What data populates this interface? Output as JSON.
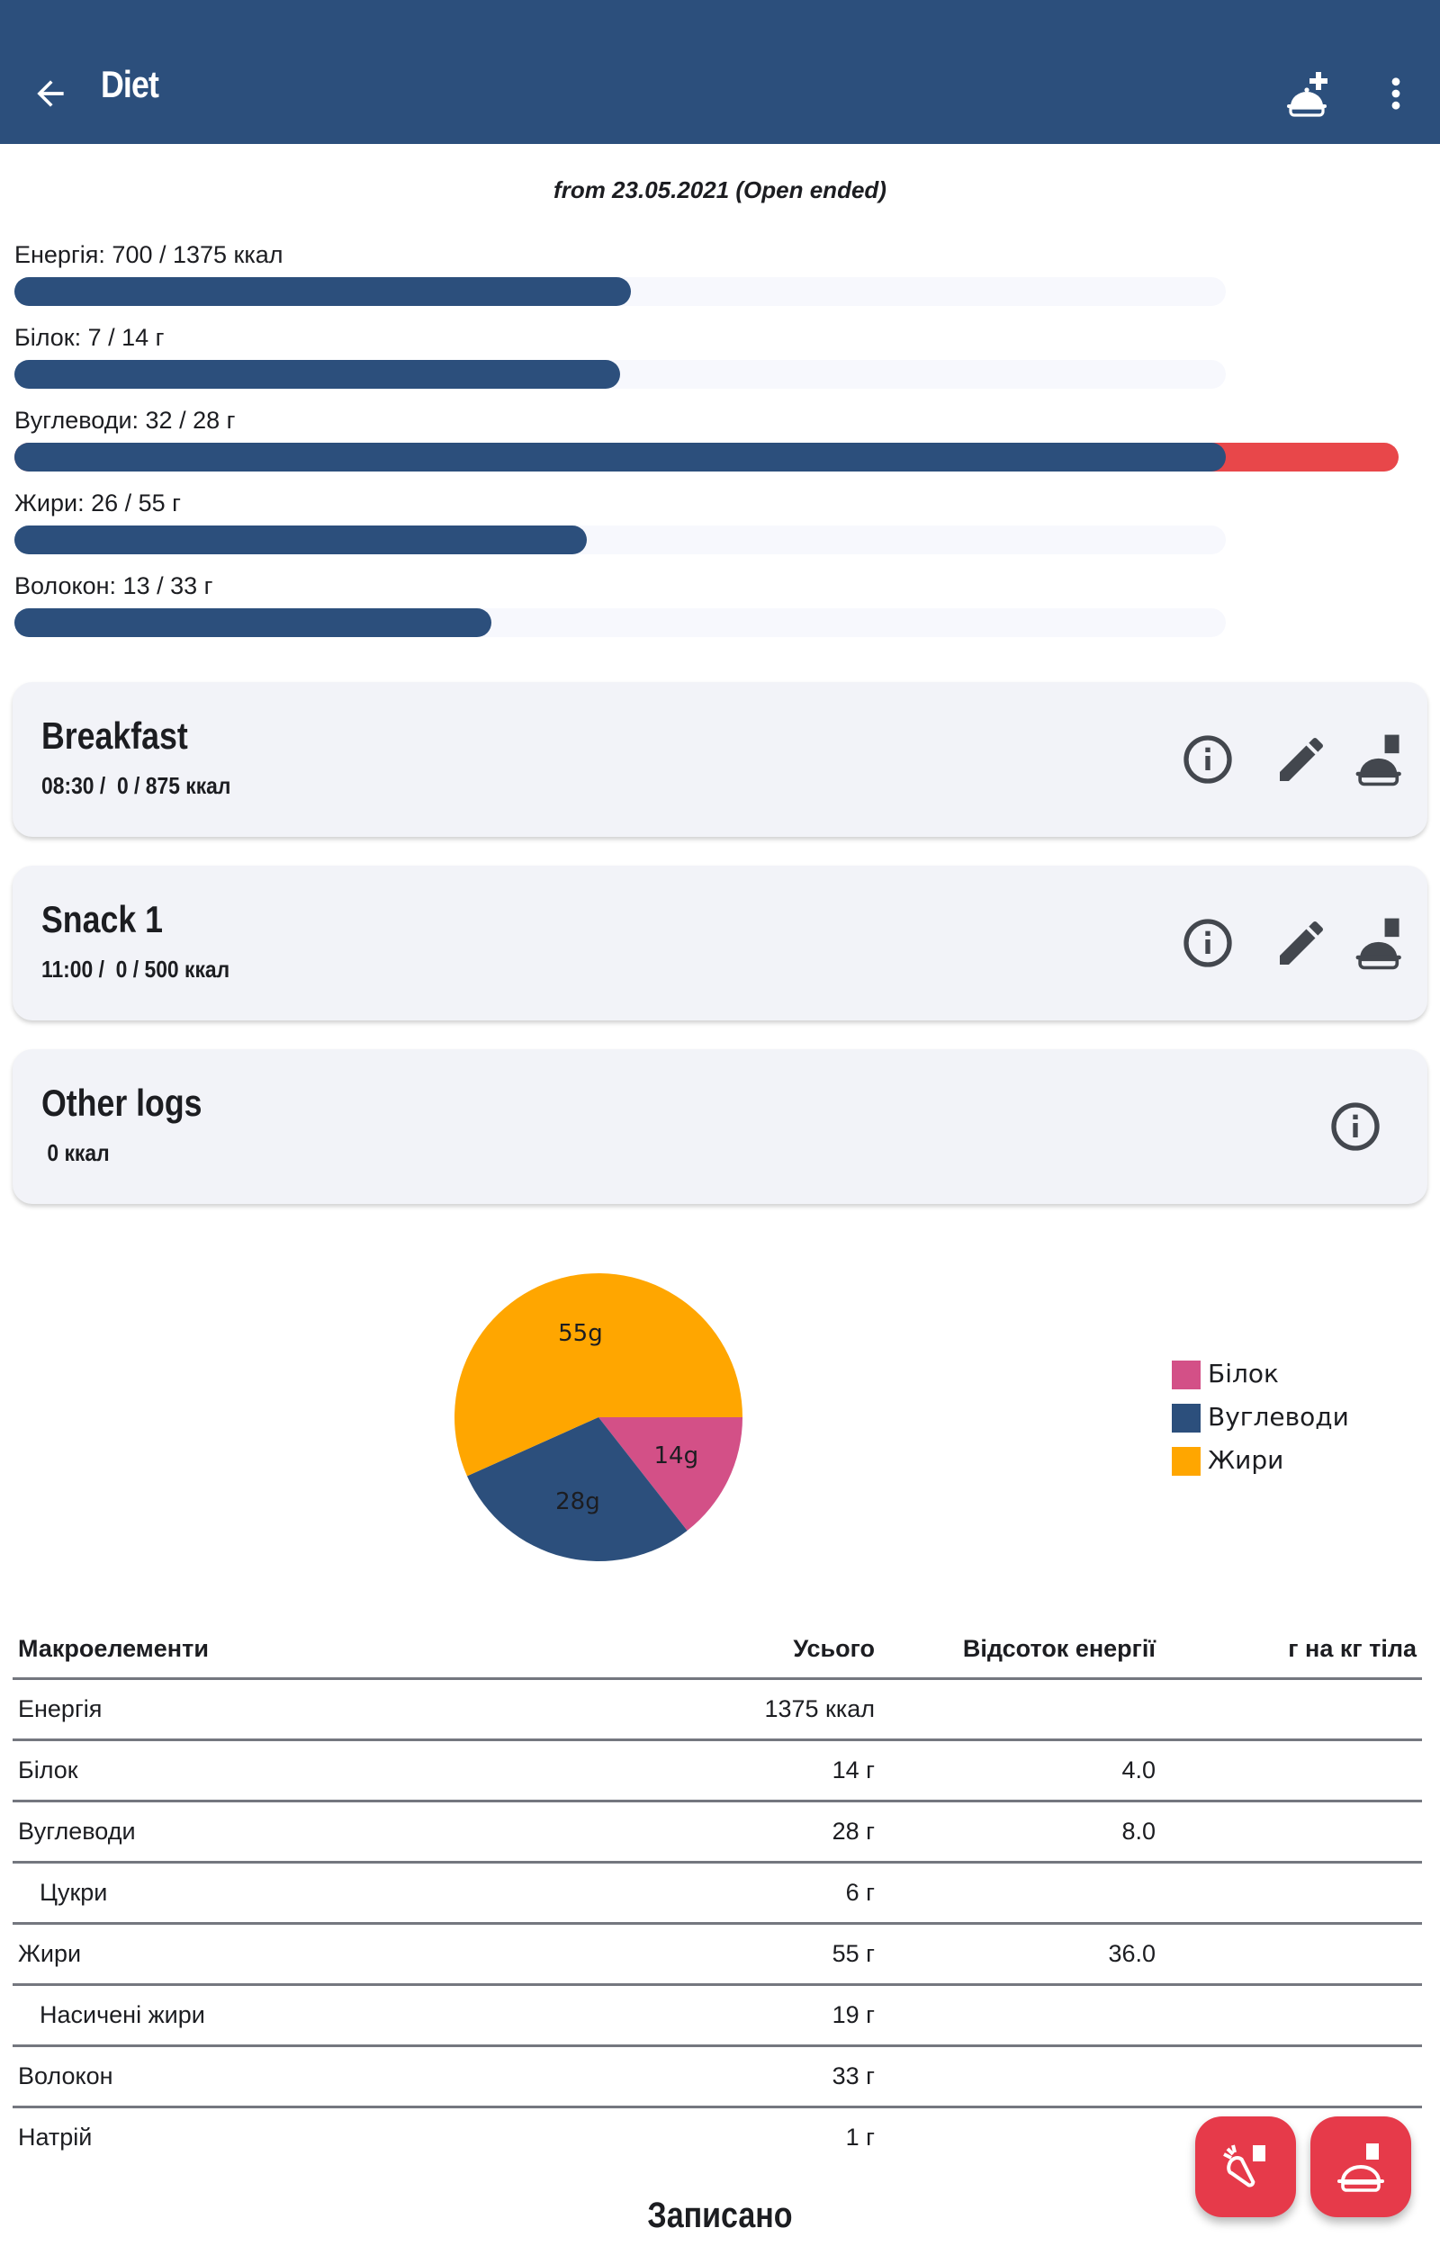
{
  "appbar": {
    "title": "Diet",
    "back_icon": "arrow-back-icon",
    "add_meal_icon": "cloche-plus-icon",
    "more_icon": "more-vert-icon",
    "color": "#2c4f7c"
  },
  "date_range": "from 23.05.2021 (Open ended)",
  "progress": [
    {
      "label": "Енергія: 700 / 1375 ккал",
      "current": 700,
      "target": 1375,
      "unit": "ккал"
    },
    {
      "label": "Білок: 7 / 14 г",
      "current": 7,
      "target": 14,
      "unit": "г"
    },
    {
      "label": "Вуглеводи: 32 / 28 г",
      "current": 32,
      "target": 28,
      "unit": "г"
    },
    {
      "label": "Жири: 26 / 55 г",
      "current": 26,
      "target": 55,
      "unit": "г"
    },
    {
      "label": "Волокон: 13 / 33 г",
      "current": 13,
      "target": 33,
      "unit": "г"
    }
  ],
  "progress_colors": {
    "fill": "#2c4f7c",
    "over": "#e8474a",
    "track": "#f7f8fd"
  },
  "meals": [
    {
      "name": "Breakfast",
      "subtitle": "08:30 /  0 / 875 ккал",
      "actions": [
        "info-icon",
        "edit-icon",
        "log-meal-icon"
      ]
    },
    {
      "name": "Snack 1",
      "subtitle": "11:00 /  0 / 500 ккал",
      "actions": [
        "info-icon",
        "edit-icon",
        "log-meal-icon"
      ]
    },
    {
      "name": "Other logs",
      "subtitle": " 0 ккал",
      "actions": [
        "info-icon"
      ]
    }
  ],
  "chart_data": {
    "type": "pie",
    "title": "",
    "slices": [
      {
        "label": "Білок",
        "value": 14,
        "data_label": "14g",
        "color": "#d35087"
      },
      {
        "label": "Вуглеводи",
        "value": 28,
        "data_label": "28g",
        "color": "#2c4f7c"
      },
      {
        "label": "Жири",
        "value": 55,
        "data_label": "55g",
        "color": "#ffa600"
      }
    ],
    "legend": [
      "Білок",
      "Вуглеводи",
      "Жири"
    ],
    "legend_position": "right"
  },
  "table": {
    "headers": [
      "Макроелементи",
      "Усього",
      "Відсоток енергії",
      "г на кг тіла"
    ],
    "rows": [
      {
        "name": "Енергія",
        "total": "1375 ккал",
        "pct": "",
        "per_kg": "",
        "indent": false
      },
      {
        "name": "Білок",
        "total": "14 г",
        "pct": "4.0",
        "per_kg": "",
        "indent": false
      },
      {
        "name": "Вуглеводи",
        "total": "28 г",
        "pct": "8.0",
        "per_kg": "",
        "indent": false
      },
      {
        "name": "Цукри",
        "total": "6 г",
        "pct": "",
        "per_kg": "",
        "indent": true
      },
      {
        "name": "Жири",
        "total": "55 г",
        "pct": "36.0",
        "per_kg": "",
        "indent": false
      },
      {
        "name": "Насичені жири",
        "total": "19 г",
        "pct": "",
        "per_kg": "",
        "indent": true
      },
      {
        "name": "Волокон",
        "total": "33 г",
        "pct": "",
        "per_kg": "",
        "indent": false
      },
      {
        "name": "Натрій",
        "total": "1 г",
        "pct": "",
        "per_kg": "",
        "indent": false
      }
    ]
  },
  "logged_title": "Записано",
  "fabs": [
    {
      "icon": "log-ingredient-icon"
    },
    {
      "icon": "log-meal-icon"
    }
  ],
  "fab_color": "#e63a4a"
}
